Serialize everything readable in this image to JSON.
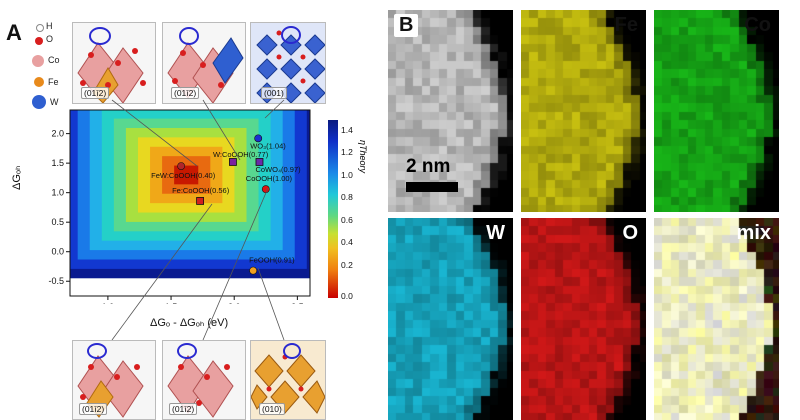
{
  "panel_a": {
    "letter": "A",
    "legend": [
      {
        "symbol": "H",
        "color": "#ffffff",
        "border": "#888888"
      },
      {
        "symbol": "O",
        "color": "#d81e1e",
        "border": "#d81e1e"
      },
      {
        "symbol": "Co",
        "color": "#e8a0a0",
        "border": "#e8a0a0"
      },
      {
        "symbol": "Fe",
        "color": "#e88a1c",
        "border": "#e88a1c"
      },
      {
        "symbol": "W",
        "color": "#2f5fd0",
        "border": "#2f5fd0"
      }
    ],
    "top_structures": [
      "(01ī2)",
      "(01ī2)",
      "(001)"
    ],
    "bottom_structures": [
      "(01ī2)",
      "(01ī2)",
      "(010)"
    ],
    "xlabel": "ΔGₒ - ΔGₒₕ (eV)",
    "ylabel": "ΔGₒₕ",
    "colorbar_label": "ηTheory",
    "colorbar_ticks": [
      "1.4",
      "1.2",
      "1.0",
      "0.8",
      "0.6",
      "0.4",
      "0.2",
      "0.0"
    ]
  },
  "chart_data": {
    "type": "scatter",
    "xlim": [
      0.7,
      2.6
    ],
    "ylim": [
      -0.75,
      2.4
    ],
    "xticks": [
      "1.0",
      "1.5",
      "2.0",
      "2.5"
    ],
    "yticks": [
      "-0.5",
      "0.0",
      "0.5",
      "1.0",
      "1.5",
      "2.0"
    ],
    "points": [
      {
        "label": "WO₃(1.04)",
        "x": 2.19,
        "y": 1.92,
        "color": "#1a2fd0"
      },
      {
        "label": "W:CoOOH(0.77)",
        "x": 1.99,
        "y": 1.52,
        "color": "#7a22a0"
      },
      {
        "label": "FeW:CoOOH(0.40)",
        "x": 1.58,
        "y": 1.45,
        "color": "#b0262a"
      },
      {
        "label": "CoWO₄(0.97)",
        "x": 2.2,
        "y": 1.52,
        "color": "#6a2aa8"
      },
      {
        "label": "CoOOH(1.00)",
        "x": 2.25,
        "y": 1.06,
        "color": "#e01010"
      },
      {
        "label": "Fe:CoOOH(0.56)",
        "x": 1.73,
        "y": 0.86,
        "color": "#d02020"
      },
      {
        "label": "FeOOH(0.91)",
        "x": 2.15,
        "y": -0.32,
        "color": "#f0a020"
      }
    ],
    "colorbar_range": [
      0.0,
      1.4
    ]
  },
  "panel_b": {
    "letter": "B",
    "scale_bar": "2 nm",
    "maps": [
      {
        "label": "",
        "base": "#cfcfcf",
        "label_color": "#ffffff"
      },
      {
        "label": "Fe",
        "base": "#c8c010",
        "label_color": "#111111"
      },
      {
        "label": "Co",
        "base": "#18b818",
        "label_color": "#111111"
      },
      {
        "label": "W",
        "base": "#19b6d2",
        "label_color": "#ffffff"
      },
      {
        "label": "O",
        "base": "#d21818",
        "label_color": "#ffffff"
      },
      {
        "label": "mix",
        "base": "#f4f3c8",
        "label_color": "#ffffff"
      }
    ]
  }
}
